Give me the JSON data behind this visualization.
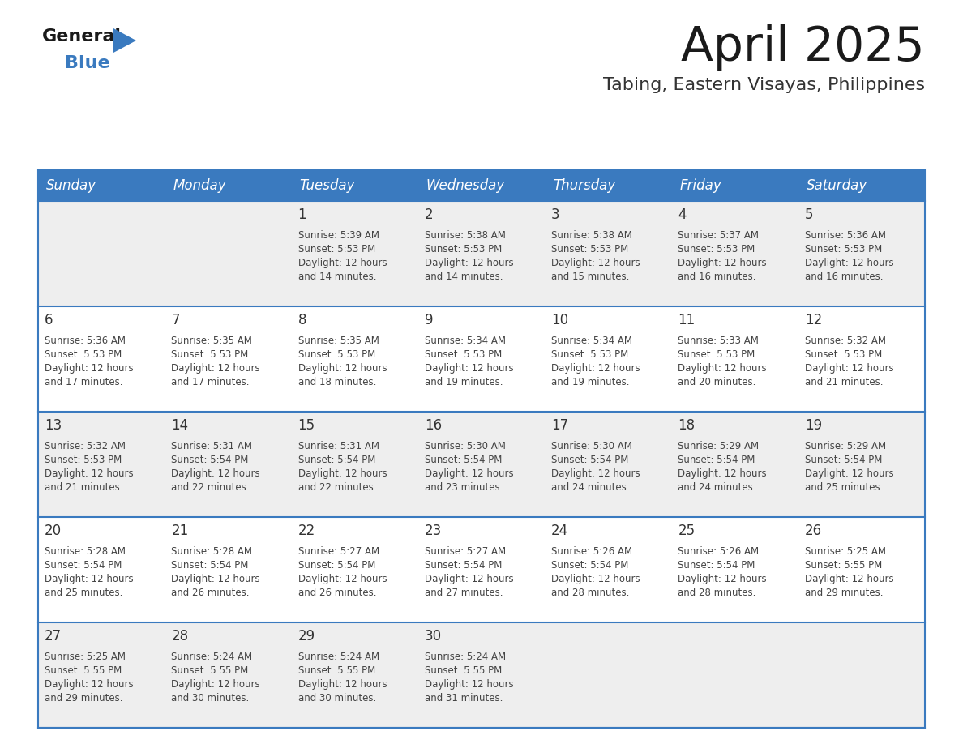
{
  "title": "April 2025",
  "subtitle": "Tabing, Eastern Visayas, Philippines",
  "header_bg": "#3a7abf",
  "header_text_color": "#ffffff",
  "days_of_week": [
    "Sunday",
    "Monday",
    "Tuesday",
    "Wednesday",
    "Thursday",
    "Friday",
    "Saturday"
  ],
  "cell_bg_odd": "#eeeeee",
  "cell_bg_even": "#ffffff",
  "separator_color": "#3a7abf",
  "text_color": "#444444",
  "day_number_color": "#333333",
  "title_color": "#1a1a1a",
  "subtitle_color": "#333333",
  "calendar_data": [
    [
      null,
      null,
      {
        "day": 1,
        "sunrise": "5:39 AM",
        "sunset": "5:53 PM",
        "minutes": "14 minutes"
      },
      {
        "day": 2,
        "sunrise": "5:38 AM",
        "sunset": "5:53 PM",
        "minutes": "14 minutes"
      },
      {
        "day": 3,
        "sunrise": "5:38 AM",
        "sunset": "5:53 PM",
        "minutes": "15 minutes"
      },
      {
        "day": 4,
        "sunrise": "5:37 AM",
        "sunset": "5:53 PM",
        "minutes": "16 minutes"
      },
      {
        "day": 5,
        "sunrise": "5:36 AM",
        "sunset": "5:53 PM",
        "minutes": "16 minutes"
      }
    ],
    [
      {
        "day": 6,
        "sunrise": "5:36 AM",
        "sunset": "5:53 PM",
        "minutes": "17 minutes"
      },
      {
        "day": 7,
        "sunrise": "5:35 AM",
        "sunset": "5:53 PM",
        "minutes": "17 minutes"
      },
      {
        "day": 8,
        "sunrise": "5:35 AM",
        "sunset": "5:53 PM",
        "minutes": "18 minutes"
      },
      {
        "day": 9,
        "sunrise": "5:34 AM",
        "sunset": "5:53 PM",
        "minutes": "19 minutes"
      },
      {
        "day": 10,
        "sunrise": "5:34 AM",
        "sunset": "5:53 PM",
        "minutes": "19 minutes"
      },
      {
        "day": 11,
        "sunrise": "5:33 AM",
        "sunset": "5:53 PM",
        "minutes": "20 minutes"
      },
      {
        "day": 12,
        "sunrise": "5:32 AM",
        "sunset": "5:53 PM",
        "minutes": "21 minutes"
      }
    ],
    [
      {
        "day": 13,
        "sunrise": "5:32 AM",
        "sunset": "5:53 PM",
        "minutes": "21 minutes"
      },
      {
        "day": 14,
        "sunrise": "5:31 AM",
        "sunset": "5:54 PM",
        "minutes": "22 minutes"
      },
      {
        "day": 15,
        "sunrise": "5:31 AM",
        "sunset": "5:54 PM",
        "minutes": "22 minutes"
      },
      {
        "day": 16,
        "sunrise": "5:30 AM",
        "sunset": "5:54 PM",
        "minutes": "23 minutes"
      },
      {
        "day": 17,
        "sunrise": "5:30 AM",
        "sunset": "5:54 PM",
        "minutes": "24 minutes"
      },
      {
        "day": 18,
        "sunrise": "5:29 AM",
        "sunset": "5:54 PM",
        "minutes": "24 minutes"
      },
      {
        "day": 19,
        "sunrise": "5:29 AM",
        "sunset": "5:54 PM",
        "minutes": "25 minutes"
      }
    ],
    [
      {
        "day": 20,
        "sunrise": "5:28 AM",
        "sunset": "5:54 PM",
        "minutes": "25 minutes"
      },
      {
        "day": 21,
        "sunrise": "5:28 AM",
        "sunset": "5:54 PM",
        "minutes": "26 minutes"
      },
      {
        "day": 22,
        "sunrise": "5:27 AM",
        "sunset": "5:54 PM",
        "minutes": "26 minutes"
      },
      {
        "day": 23,
        "sunrise": "5:27 AM",
        "sunset": "5:54 PM",
        "minutes": "27 minutes"
      },
      {
        "day": 24,
        "sunrise": "5:26 AM",
        "sunset": "5:54 PM",
        "minutes": "28 minutes"
      },
      {
        "day": 25,
        "sunrise": "5:26 AM",
        "sunset": "5:54 PM",
        "minutes": "28 minutes"
      },
      {
        "day": 26,
        "sunrise": "5:25 AM",
        "sunset": "5:55 PM",
        "minutes": "29 minutes"
      }
    ],
    [
      {
        "day": 27,
        "sunrise": "5:25 AM",
        "sunset": "5:55 PM",
        "minutes": "29 minutes"
      },
      {
        "day": 28,
        "sunrise": "5:24 AM",
        "sunset": "5:55 PM",
        "minutes": "30 minutes"
      },
      {
        "day": 29,
        "sunrise": "5:24 AM",
        "sunset": "5:55 PM",
        "minutes": "30 minutes"
      },
      {
        "day": 30,
        "sunrise": "5:24 AM",
        "sunset": "5:55 PM",
        "minutes": "31 minutes"
      },
      null,
      null,
      null
    ]
  ]
}
